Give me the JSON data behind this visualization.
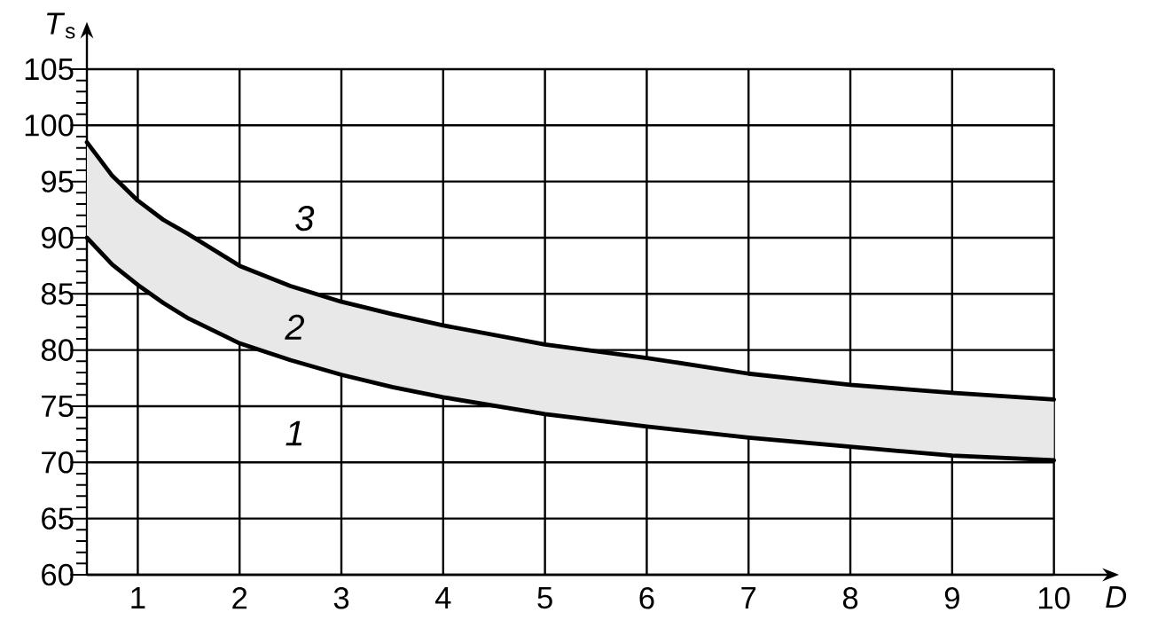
{
  "chart_data": {
    "type": "line",
    "xlabel": "D",
    "ylabel": "*T*$_{s}$",
    "x": [
      0.5,
      0.75,
      1,
      1.25,
      1.5,
      2,
      2.5,
      3,
      3.5,
      4,
      5,
      6,
      7,
      8,
      9,
      10
    ],
    "series": [
      {
        "color": "#000000",
        "values": [
          90,
          87.6,
          85.8,
          84.2,
          82.8,
          80.6,
          79.1,
          77.8,
          76.7,
          75.8,
          74.3,
          73.2,
          72.2,
          71.4,
          70.6,
          70.2
        ]
      },
      {
        "color": "#000000",
        "values": [
          98.5,
          95.5,
          93.3,
          91.6,
          90.3,
          87.5,
          85.7,
          84.3,
          83.2,
          82.2,
          80.5,
          79.3,
          77.9,
          76.9,
          76.2,
          75.6
        ],
        "lower": [
          90,
          87.6,
          85.8,
          84.2,
          82.8,
          80.6,
          79.1,
          77.8,
          76.7,
          75.8,
          74.3,
          73.2,
          72.2,
          71.4,
          70.6,
          70.2
        ],
        "upper": [
          98.5,
          95.5,
          93.3,
          91.6,
          90.3,
          87.5,
          85.7,
          84.3,
          83.2,
          82.2,
          80.5,
          79.3,
          77.9,
          76.9,
          76.2,
          75.6
        ]
      }
    ],
    "annotations": [
      "1",
      "2",
      "3"
    ],
    "xlim": [
      0.5,
      10
    ],
    "ylim": [
      60,
      105
    ],
    "xticks": [
      1,
      2,
      3,
      4,
      5,
      6,
      7,
      8,
      9,
      10
    ],
    "yticks": [
      60,
      65,
      70,
      75,
      80,
      85,
      90,
      95,
      100,
      105
    ],
    "grid": true,
    "marker": "none",
    "line_style": "solid"
  }
}
